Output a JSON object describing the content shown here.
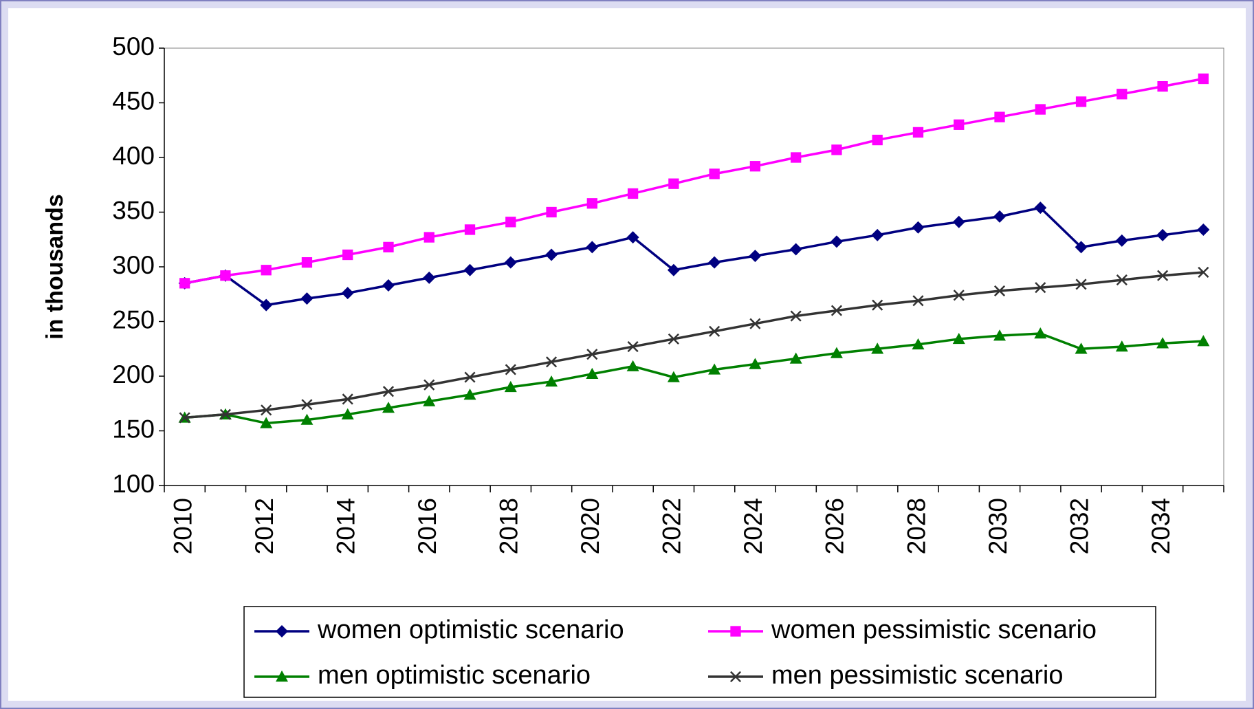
{
  "chart_data": {
    "type": "line",
    "y_label": "in thousands",
    "categories": [
      "2010",
      null,
      "2012",
      null,
      "2014",
      null,
      "2016",
      null,
      "2018",
      null,
      "2020",
      null,
      "2022",
      null,
      "2024",
      null,
      "2026",
      null,
      "2028",
      null,
      "2030",
      null,
      "2032",
      null,
      "2034",
      null
    ],
    "series": [
      {
        "name": "women optimistic scenario",
        "color": "#000080",
        "marker": "diamond",
        "values": [
          285,
          292,
          265,
          271,
          276,
          283,
          290,
          297,
          304,
          311,
          318,
          327,
          297,
          304,
          310,
          316,
          323,
          329,
          336,
          341,
          346,
          354,
          318,
          324,
          329,
          334
        ]
      },
      {
        "name": "women pessimistic scenario",
        "color": "#ff00ff",
        "marker": "square",
        "values": [
          285,
          292,
          297,
          304,
          311,
          318,
          327,
          334,
          341,
          350,
          358,
          367,
          376,
          385,
          392,
          400,
          407,
          416,
          423,
          430,
          437,
          444,
          451,
          458,
          465,
          472
        ]
      },
      {
        "name": "men optimistic scenario",
        "color": "#008000",
        "marker": "triangle",
        "values": [
          162,
          165,
          157,
          160,
          165,
          171,
          177,
          183,
          190,
          195,
          202,
          209,
          199,
          206,
          211,
          216,
          221,
          225,
          229,
          234,
          237,
          239,
          225,
          227,
          230,
          232
        ]
      },
      {
        "name": "men pessimistic scenario",
        "color": "#333333",
        "marker": "x",
        "values": [
          162,
          165,
          169,
          174,
          179,
          186,
          192,
          199,
          206,
          213,
          220,
          227,
          234,
          241,
          248,
          255,
          260,
          265,
          269,
          274,
          278,
          281,
          284,
          288,
          292,
          295
        ]
      }
    ],
    "ylim": [
      100,
      500
    ],
    "yticks": [
      100,
      150,
      200,
      250,
      300,
      350,
      400,
      450,
      500
    ],
    "grid": false
  }
}
